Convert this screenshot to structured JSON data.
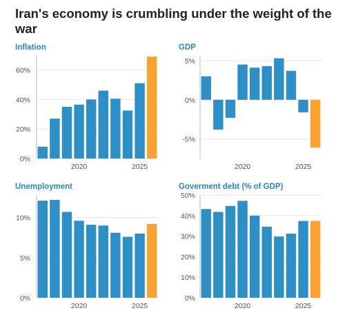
{
  "title": "Iran's economy is crumbling under the weight of the war",
  "colors": {
    "bar": "#2e8fc7",
    "highlight": "#fca230",
    "panel_title": "#2b86bc",
    "grid": "#e6e6e6",
    "axis": "#bbbbbb"
  },
  "chart_data": [
    {
      "type": "bar",
      "title": "Inflation",
      "x": [
        2017,
        2018,
        2019,
        2020,
        2021,
        2022,
        2023,
        2024,
        2025,
        2026
      ],
      "values": [
        8,
        27,
        35,
        36.5,
        40,
        46,
        40.5,
        32.5,
        51,
        69
      ],
      "highlight_last": true,
      "ylim": [
        0,
        70
      ],
      "yticks": [
        0,
        20,
        40,
        60
      ],
      "ytick_labels": [
        "0%",
        "20%",
        "40%",
        "60%"
      ],
      "xticks": [
        2020,
        2025
      ],
      "xtick_labels": [
        "2020",
        "2025"
      ],
      "grid": true
    },
    {
      "type": "bar",
      "title": "GDP",
      "x": [
        2017,
        2018,
        2019,
        2020,
        2021,
        2022,
        2023,
        2024,
        2025,
        2026
      ],
      "values": [
        3,
        -3.8,
        -2.3,
        4.5,
        4.1,
        4.3,
        5.3,
        3.7,
        -1.6,
        -6.1
      ],
      "highlight_last": true,
      "ylim": [
        -7.5,
        5.7
      ],
      "yticks": [
        -5,
        0,
        5
      ],
      "ytick_labels": [
        "-5%",
        "0%",
        "5%"
      ],
      "xticks": [
        2020,
        2025
      ],
      "xtick_labels": [
        "2020",
        "2025"
      ],
      "grid": true
    },
    {
      "type": "bar",
      "title": "Unemployment",
      "x": [
        2017,
        2018,
        2019,
        2020,
        2021,
        2022,
        2023,
        2024,
        2025,
        2026
      ],
      "values": [
        12.1,
        12.2,
        10.7,
        9.6,
        9.1,
        9.0,
        8.1,
        7.6,
        8.0,
        9.2
      ],
      "highlight_last": true,
      "ylim": [
        0,
        12.8
      ],
      "yticks": [
        0,
        5,
        10
      ],
      "ytick_labels": [
        "0%",
        "5%",
        "10%"
      ],
      "xticks": [
        2020,
        2025
      ],
      "xtick_labels": [
        "2020",
        "2025"
      ],
      "grid": true
    },
    {
      "type": "bar",
      "title": "Goverment debt (% of GDP)",
      "x": [
        2017,
        2018,
        2019,
        2020,
        2021,
        2022,
        2023,
        2024,
        2025,
        2026
      ],
      "values": [
        43.2,
        41.8,
        44.7,
        47.2,
        40.0,
        34.6,
        29.8,
        31.2,
        37.4,
        37.4
      ],
      "highlight_last": true,
      "ylim": [
        0,
        50
      ],
      "yticks": [
        0,
        10,
        20,
        30,
        40,
        50
      ],
      "ytick_labels": [
        "0%",
        "10%",
        "20%",
        "30%",
        "40%",
        "50%"
      ],
      "xticks": [
        2020,
        2025
      ],
      "xtick_labels": [
        "2020",
        "2025"
      ],
      "grid": true
    }
  ]
}
